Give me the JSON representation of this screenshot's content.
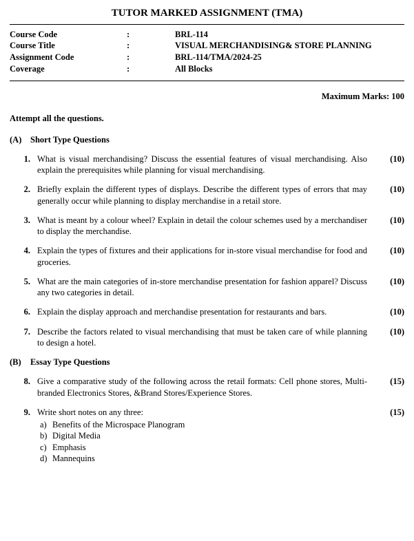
{
  "title": "TUTOR MARKED ASSIGNMENT (TMA)",
  "meta": [
    {
      "label": "Course Code",
      "value": "BRL-114"
    },
    {
      "label": "Course Title",
      "value": "VISUAL MERCHANDISING& STORE PLANNING"
    },
    {
      "label": "Assignment Code",
      "value": "BRL-114/TMA/2024-25"
    },
    {
      "label": "Coverage",
      "value": "All Blocks"
    }
  ],
  "max_marks": "Maximum Marks: 100",
  "attempt": "Attempt all the questions.",
  "sections": [
    {
      "letter": "(A)",
      "title": "Short Type Questions",
      "questions": [
        {
          "num": "1.",
          "text": "What is visual merchandising? Discuss the essential features of visual merchandising. Also explain the prerequisites while planning for visual merchandising.",
          "marks": "(10)"
        },
        {
          "num": "2.",
          "text": "Briefly explain the different types of displays. Describe the different types of errors that may generally occur while planning to display merchandise in a retail store.",
          "marks": "(10)"
        },
        {
          "num": "3.",
          "text": "What is meant by a colour wheel? Explain in detail the colour schemes used by a merchandiser to display the merchandise.",
          "marks": "(10)"
        },
        {
          "num": "4.",
          "text": "Explain the types of fixtures and their applications for in-store visual merchandise for food and groceries.",
          "marks": "(10)"
        },
        {
          "num": "5.",
          "text": "What are the main categories of in-store merchandise presentation for fashion apparel? Discuss any two categories in detail.",
          "marks": "(10)"
        },
        {
          "num": "6.",
          "text": "Explain the display approach and merchandise presentation for restaurants and bars.",
          "marks": "(10)"
        },
        {
          "num": "7.",
          "text": "Describe the factors related to visual merchandising that must be taken care of while planning to design a hotel.",
          "marks": "(10)"
        }
      ]
    },
    {
      "letter": "(B)",
      "title": "Essay Type Questions",
      "questions": [
        {
          "num": "8.",
          "text": "Give a comparative study of the following across the retail formats: Cell phone stores, Multi-branded Electronics Stores, &Brand Stores/Experience Stores.",
          "marks": "(15)"
        },
        {
          "num": "9.",
          "text": "Write short notes on any three:",
          "marks": "(15)",
          "subs": [
            {
              "letter": "a)",
              "text": "Benefits of the Microspace Planogram"
            },
            {
              "letter": "b)",
              "text": "Digital Media"
            },
            {
              "letter": "c)",
              "text": "Emphasis"
            },
            {
              "letter": "d)",
              "text": "Mannequins"
            }
          ]
        }
      ]
    }
  ]
}
